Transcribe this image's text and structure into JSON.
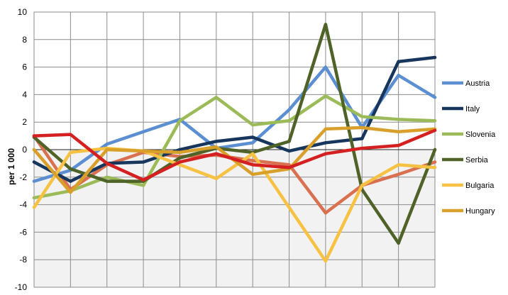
{
  "chart_data": {
    "type": "line",
    "ylabel": "per 1 000",
    "ylim": [
      -10,
      10
    ],
    "y_ticks": [
      -10,
      -8,
      -6,
      -4,
      -2,
      0,
      2,
      4,
      6,
      8,
      10
    ],
    "x_points": 12,
    "grid": true,
    "legend_position": "right",
    "series": [
      {
        "name": "",
        "color": "#d9704f",
        "values": [
          1.0,
          -2.9,
          -1.1,
          -0.2,
          -0.5,
          -0.4,
          -0.8,
          -1.1,
          -4.6,
          -2.6,
          -1.8,
          -0.9
        ]
      },
      {
        "name": "Austria",
        "color": "#5b8fd1",
        "values": [
          -2.3,
          -1.5,
          0.4,
          1.3,
          2.2,
          0.1,
          0.5,
          2.9,
          6.0,
          1.6,
          5.4,
          3.8
        ]
      },
      {
        "name": "Italy",
        "color": "#17365d",
        "values": [
          -0.9,
          -2.3,
          -1.0,
          -0.9,
          0.0,
          0.6,
          0.9,
          -0.1,
          0.5,
          0.8,
          6.4,
          6.7
        ]
      },
      {
        "name": "Slovenia",
        "color": "#9bbb59",
        "values": [
          -3.5,
          -3.0,
          -2.0,
          -2.6,
          2.1,
          3.8,
          1.8,
          2.1,
          3.9,
          2.4,
          2.2,
          2.1
        ]
      },
      {
        "name": "Serbia",
        "color": "#4f6228",
        "values": [
          0.9,
          -1.4,
          -2.3,
          -2.3,
          -0.6,
          0.1,
          -0.2,
          0.6,
          9.1,
          -2.9,
          -6.8,
          0.0
        ]
      },
      {
        "name": "Bulgaria",
        "color": "#f7c244",
        "values": [
          -4.2,
          -0.2,
          0.1,
          -0.1,
          -1.1,
          -2.1,
          -0.3,
          -4.2,
          -8.1,
          -2.6,
          -1.1,
          -1.3
        ]
      },
      {
        "name": "Hungary",
        "color": "#d8a02a",
        "values": [
          0.0,
          -3.1,
          0.0,
          -0.1,
          -0.2,
          0.2,
          -1.8,
          -1.4,
          1.5,
          1.6,
          1.3,
          1.5
        ]
      },
      {
        "name": "",
        "color": "#d42020",
        "values": [
          1.0,
          1.1,
          -1.0,
          -2.2,
          -0.9,
          -0.3,
          -1.1,
          -1.3,
          -0.3,
          0.1,
          0.3,
          1.4
        ]
      }
    ]
  }
}
